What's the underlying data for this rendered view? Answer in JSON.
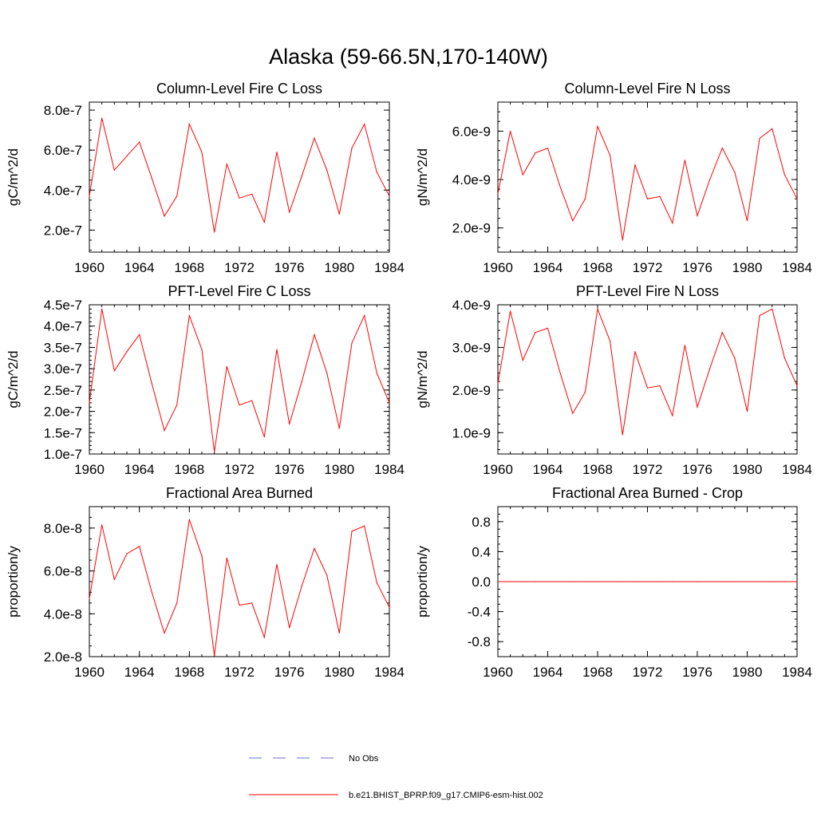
{
  "figure": {
    "title": "Alaska (59-66.5N,170-140W)"
  },
  "colors": {
    "series": "#ff0000",
    "obs": "#6a6fc8",
    "axis": "#000000"
  },
  "legend": {
    "items": [
      {
        "label": "No Obs",
        "style": "dashed",
        "color": "#6a6fc8"
      },
      {
        "label": "b.e21.BHIST_BPRP.f09_g17.CMIP6-esm-hist.002",
        "style": "solid",
        "color": "#ff0000"
      }
    ]
  },
  "chart_data": [
    {
      "type": "line",
      "title": "Column-Level Fire C Loss",
      "xlabel": "",
      "ylabel": "gC/m^2/d",
      "xlim": [
        1960,
        1984
      ],
      "ylim": [
        9e-08,
        8.4e-07
      ],
      "xticks": [
        1960,
        1964,
        1968,
        1972,
        1976,
        1980,
        1984
      ],
      "xtick_labels": [
        "1960",
        "1964",
        "1968",
        "1972",
        "1976",
        "1980",
        "1984"
      ],
      "yticks": [
        2e-07,
        4e-07,
        6e-07,
        8e-07
      ],
      "ytick_labels": [
        "2.0e-7",
        "4.0e-7",
        "6.0e-7",
        "8.0e-7"
      ],
      "yminor": 5e-08,
      "x": [
        1960,
        1961,
        1962,
        1963,
        1964,
        1965,
        1966,
        1967,
        1968,
        1969,
        1970,
        1971,
        1972,
        1973,
        1974,
        1975,
        1976,
        1977,
        1978,
        1979,
        1980,
        1981,
        1982,
        1983,
        1984
      ],
      "series": [
        {
          "values": [
            3.7e-07,
            7.6e-07,
            5e-07,
            5.7e-07,
            6.4e-07,
            4.6e-07,
            2.7e-07,
            3.7e-07,
            7.3e-07,
            5.9e-07,
            1.9e-07,
            5.3e-07,
            3.6e-07,
            3.8e-07,
            2.4e-07,
            5.9e-07,
            2.9e-07,
            4.7e-07,
            6.6e-07,
            5e-07,
            2.8e-07,
            6.1e-07,
            7.3e-07,
            4.9e-07,
            3.7e-07
          ]
        }
      ]
    },
    {
      "type": "line",
      "title": "Column-Level Fire N Loss",
      "xlabel": "",
      "ylabel": "gN/m^2/d",
      "xlim": [
        1960,
        1984
      ],
      "ylim": [
        1e-09,
        7.2e-09
      ],
      "xticks": [
        1960,
        1964,
        1968,
        1972,
        1976,
        1980,
        1984
      ],
      "xtick_labels": [
        "1960",
        "1964",
        "1968",
        "1972",
        "1976",
        "1980",
        "1984"
      ],
      "yticks": [
        2e-09,
        4e-09,
        6e-09
      ],
      "ytick_labels": [
        "2.0e-9",
        "4.0e-9",
        "6.0e-9"
      ],
      "yminor": 4e-10,
      "x": [
        1960,
        1961,
        1962,
        1963,
        1964,
        1965,
        1966,
        1967,
        1968,
        1969,
        1970,
        1971,
        1972,
        1973,
        1974,
        1975,
        1976,
        1977,
        1978,
        1979,
        1980,
        1981,
        1982,
        1983,
        1984
      ],
      "series": [
        {
          "values": [
            3.4e-09,
            6e-09,
            4.2e-09,
            5.1e-09,
            5.3e-09,
            3.7e-09,
            2.3e-09,
            3.2e-09,
            6.2e-09,
            5e-09,
            1.5e-09,
            4.6e-09,
            3.2e-09,
            3.3e-09,
            2.2e-09,
            4.8e-09,
            2.5e-09,
            4e-09,
            5.3e-09,
            4.3e-09,
            2.3e-09,
            5.7e-09,
            6.1e-09,
            4.2e-09,
            3.2e-09
          ]
        }
      ]
    },
    {
      "type": "line",
      "title": "PFT-Level Fire C Loss",
      "xlabel": "",
      "ylabel": "gC/m^2/d",
      "xlim": [
        1960,
        1984
      ],
      "ylim": [
        1e-07,
        4.5e-07
      ],
      "xticks": [
        1960,
        1964,
        1968,
        1972,
        1976,
        1980,
        1984
      ],
      "xtick_labels": [
        "1960",
        "1964",
        "1968",
        "1972",
        "1976",
        "1980",
        "1984"
      ],
      "yticks": [
        1e-07,
        1.5e-07,
        2e-07,
        2.5e-07,
        3e-07,
        3.5e-07,
        4e-07,
        4.5e-07
      ],
      "ytick_labels": [
        "1.0e-7",
        "1.5e-7",
        "2.0e-7",
        "2.5e-7",
        "3.0e-7",
        "3.5e-7",
        "4.0e-7",
        "4.5e-7"
      ],
      "yminor": 1e-08,
      "x": [
        1960,
        1961,
        1962,
        1963,
        1964,
        1965,
        1966,
        1967,
        1968,
        1969,
        1970,
        1971,
        1972,
        1973,
        1974,
        1975,
        1976,
        1977,
        1978,
        1979,
        1980,
        1981,
        1982,
        1983,
        1984
      ],
      "series": [
        {
          "values": [
            2.2e-07,
            4.4e-07,
            2.95e-07,
            3.4e-07,
            3.8e-07,
            2.65e-07,
            1.55e-07,
            2.15e-07,
            4.25e-07,
            3.45e-07,
            1.05e-07,
            3.05e-07,
            2.15e-07,
            2.25e-07,
            1.4e-07,
            3.45e-07,
            1.7e-07,
            2.7e-07,
            3.8e-07,
            2.9e-07,
            1.6e-07,
            3.6e-07,
            4.25e-07,
            2.9e-07,
            2.2e-07
          ]
        }
      ]
    },
    {
      "type": "line",
      "title": "PFT-Level Fire N Loss",
      "xlabel": "",
      "ylabel": "gN/m^2/d",
      "xlim": [
        1960,
        1984
      ],
      "ylim": [
        5e-10,
        4e-09
      ],
      "xticks": [
        1960,
        1964,
        1968,
        1972,
        1976,
        1980,
        1984
      ],
      "xtick_labels": [
        "1960",
        "1964",
        "1968",
        "1972",
        "1976",
        "1980",
        "1984"
      ],
      "yticks": [
        1e-09,
        2e-09,
        3e-09,
        4e-09
      ],
      "ytick_labels": [
        "1.0e-9",
        "2.0e-9",
        "3.0e-9",
        "4.0e-9"
      ],
      "yminor": 2e-10,
      "x": [
        1960,
        1961,
        1962,
        1963,
        1964,
        1965,
        1966,
        1967,
        1968,
        1969,
        1970,
        1971,
        1972,
        1973,
        1974,
        1975,
        1976,
        1977,
        1978,
        1979,
        1980,
        1981,
        1982,
        1983,
        1984
      ],
      "series": [
        {
          "values": [
            2.15e-09,
            3.85e-09,
            2.7e-09,
            3.35e-09,
            3.45e-09,
            2.4e-09,
            1.45e-09,
            1.95e-09,
            3.9e-09,
            3.15e-09,
            9.5e-10,
            2.9e-09,
            2.05e-09,
            2.1e-09,
            1.4e-09,
            3.05e-09,
            1.6e-09,
            2.5e-09,
            3.35e-09,
            2.75e-09,
            1.5e-09,
            3.75e-09,
            3.9e-09,
            2.75e-09,
            2.1e-09
          ]
        }
      ]
    },
    {
      "type": "line",
      "title": "Fractional Area Burned",
      "xlabel": "",
      "ylabel": "proportion/y",
      "xlim": [
        1960,
        1984
      ],
      "ylim": [
        2e-08,
        9e-08
      ],
      "xticks": [
        1960,
        1964,
        1968,
        1972,
        1976,
        1980,
        1984
      ],
      "xtick_labels": [
        "1960",
        "1964",
        "1968",
        "1972",
        "1976",
        "1980",
        "1984"
      ],
      "yticks": [
        2e-08,
        4e-08,
        6e-08,
        8e-08
      ],
      "ytick_labels": [
        "2.0e-8",
        "4.0e-8",
        "6.0e-8",
        "8.0e-8"
      ],
      "yminor": 5e-09,
      "x": [
        1960,
        1961,
        1962,
        1963,
        1964,
        1965,
        1966,
        1967,
        1968,
        1969,
        1970,
        1971,
        1972,
        1973,
        1974,
        1975,
        1976,
        1977,
        1978,
        1979,
        1980,
        1981,
        1982,
        1983,
        1984
      ],
      "series": [
        {
          "values": [
            4.7e-08,
            8.15e-08,
            5.6e-08,
            6.8e-08,
            7.15e-08,
            5e-08,
            3.1e-08,
            4.5e-08,
            8.4e-08,
            6.7e-08,
            2.05e-08,
            6.6e-08,
            4.4e-08,
            4.5e-08,
            2.9e-08,
            6.3e-08,
            3.35e-08,
            5.3e-08,
            7.05e-08,
            5.8e-08,
            3.1e-08,
            7.85e-08,
            8.1e-08,
            5.45e-08,
            4.3e-08
          ]
        }
      ]
    },
    {
      "type": "line",
      "title": "Fractional Area Burned - Crop",
      "xlabel": "",
      "ylabel": "proportion/y",
      "xlim": [
        1960,
        1984
      ],
      "ylim": [
        -1.0,
        1.0
      ],
      "xticks": [
        1960,
        1964,
        1968,
        1972,
        1976,
        1980,
        1984
      ],
      "xtick_labels": [
        "1960",
        "1964",
        "1968",
        "1972",
        "1976",
        "1980",
        "1984"
      ],
      "yticks": [
        -0.8,
        -0.4,
        0.0,
        0.4,
        0.8
      ],
      "ytick_labels": [
        "-0.8",
        "-0.4",
        "0.0",
        "0.4",
        "0.8"
      ],
      "yminor": 0.1,
      "x": [
        1960,
        1961,
        1962,
        1963,
        1964,
        1965,
        1966,
        1967,
        1968,
        1969,
        1970,
        1971,
        1972,
        1973,
        1974,
        1975,
        1976,
        1977,
        1978,
        1979,
        1980,
        1981,
        1982,
        1983,
        1984
      ],
      "series": [
        {
          "values": [
            0,
            0,
            0,
            0,
            0,
            0,
            0,
            0,
            0,
            0,
            0,
            0,
            0,
            0,
            0,
            0,
            0,
            0,
            0,
            0,
            0,
            0,
            0,
            0,
            0
          ]
        }
      ]
    }
  ]
}
